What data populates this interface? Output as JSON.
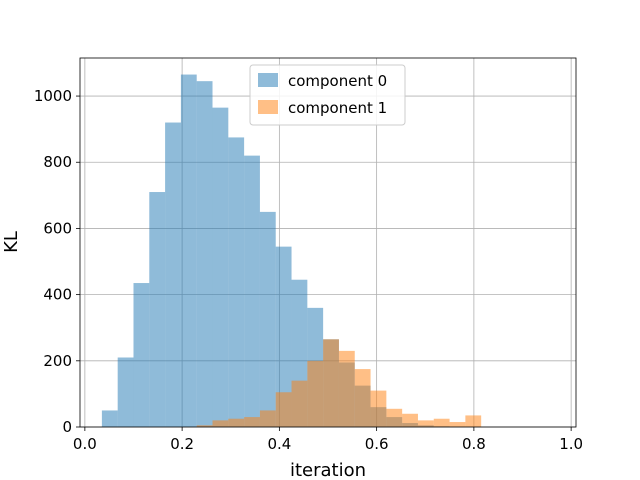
{
  "chart_data": {
    "type": "bar",
    "xlabel": "iteration",
    "ylabel": "KL",
    "xlim": [
      -0.01,
      1.01
    ],
    "ylim": [
      0,
      1115
    ],
    "xticks": [
      0.0,
      0.2,
      0.4,
      0.6,
      0.8,
      1.0
    ],
    "xtick_labels": [
      "0.0",
      "0.2",
      "0.4",
      "0.6",
      "0.8",
      "1.0"
    ],
    "yticks": [
      0,
      200,
      400,
      600,
      800,
      1000
    ],
    "ytick_labels": [
      "0",
      "200",
      "400",
      "600",
      "800",
      "1000"
    ],
    "grid": true,
    "legend_position": "upper center",
    "series": [
      {
        "name": "component 0",
        "color": "#1f77b4",
        "opacity": 0.5,
        "bin_edges": [
          0.035,
          0.0675,
          0.1,
          0.1325,
          0.165,
          0.1975,
          0.23,
          0.2625,
          0.295,
          0.3275,
          0.36,
          0.3925,
          0.425,
          0.4575,
          0.49,
          0.5225,
          0.555,
          0.5875,
          0.62,
          0.6525,
          0.685,
          0.7175,
          0.75
        ],
        "counts": [
          50,
          210,
          435,
          710,
          920,
          1065,
          1045,
          965,
          875,
          820,
          650,
          545,
          445,
          360,
          265,
          195,
          125,
          60,
          30,
          12,
          5,
          2
        ]
      },
      {
        "name": "component 1",
        "color": "#ff7f0e",
        "opacity": 0.5,
        "bin_edges": [
          0.23,
          0.2625,
          0.295,
          0.3275,
          0.36,
          0.3925,
          0.425,
          0.4575,
          0.49,
          0.5225,
          0.555,
          0.5875,
          0.62,
          0.6525,
          0.685,
          0.7175,
          0.75,
          0.7825,
          0.815,
          0.8475,
          0.88,
          0.9125,
          0.945,
          0.9775
        ],
        "counts": [
          5,
          20,
          25,
          30,
          50,
          105,
          140,
          200,
          265,
          230,
          175,
          110,
          55,
          40,
          20,
          25,
          15,
          35,
          0,
          0,
          0,
          0,
          0
        ]
      }
    ]
  }
}
